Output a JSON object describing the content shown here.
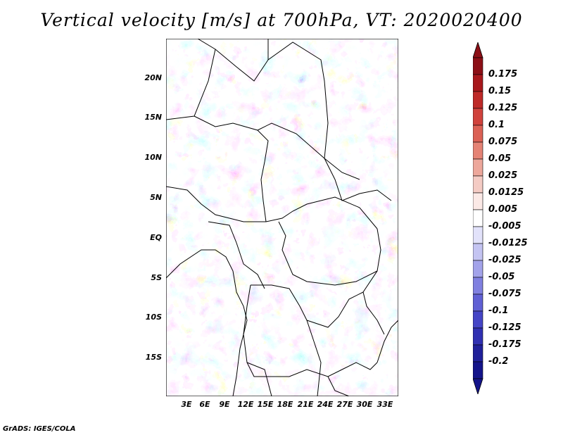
{
  "title": "Vertical velocity [m/s] at 700hPa, VT: 2020020400",
  "credit": "GrADS: IGES/COLA",
  "map": {
    "variable": "Vertical velocity",
    "units": "m/s",
    "level": "700hPa",
    "valid_time": "2020020400",
    "lat_labels": [
      "20N",
      "15N",
      "10N",
      "5N",
      "EQ",
      "5S",
      "10S",
      "15S"
    ],
    "lon_labels": [
      "3E",
      "6E",
      "9E",
      "12E",
      "15E",
      "18E",
      "21E",
      "24E",
      "27E",
      "30E",
      "33E"
    ]
  },
  "colorbar": {
    "labels": [
      "0.175",
      "0.15",
      "0.125",
      "0.1",
      "0.075",
      "0.05",
      "0.025",
      "0.0125",
      "0.005",
      "-0.005",
      "-0.0125",
      "-0.025",
      "-0.05",
      "-0.075",
      "-0.1",
      "-0.125",
      "-0.175",
      "-0.2"
    ],
    "colors": [
      "#8c0f16",
      "#a8181c",
      "#be2a28",
      "#d0423c",
      "#db6155",
      "#e58375",
      "#eda79b",
      "#f4cbc4",
      "#fbe9e6",
      "#ffffff",
      "#e2e2fa",
      "#c4c4f2",
      "#a3a3ea",
      "#8080e0",
      "#6060d4",
      "#4545c6",
      "#3030b2",
      "#20209a",
      "#14148a"
    ],
    "top_arrow_color": "#8c0f16",
    "bottom_arrow_color": "#14148a"
  }
}
